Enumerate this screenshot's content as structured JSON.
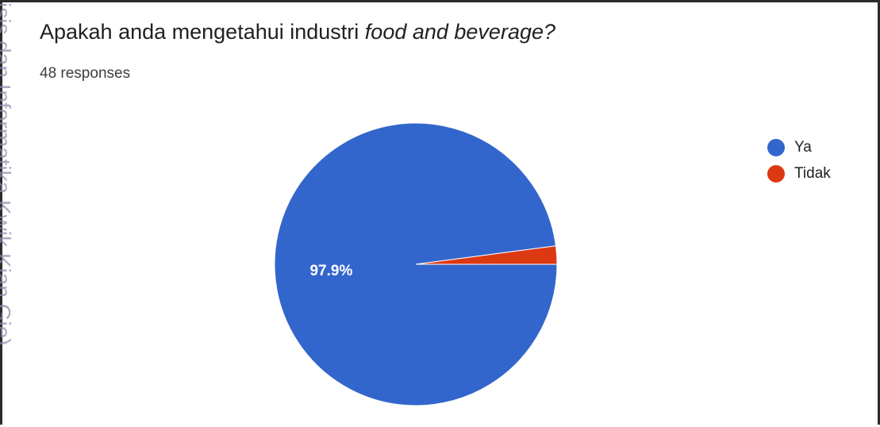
{
  "watermark": "isis dan Informatika Kwik Kian Gie)",
  "title_prefix": "Apakah anda mengetahui industri ",
  "title_italic": "food and beverage?",
  "responses": "48 responses",
  "chart_data": {
    "type": "pie",
    "categories": [
      "Ya",
      "Tidak"
    ],
    "values": [
      47,
      1
    ],
    "percent_labels": [
      "97.9%",
      ""
    ],
    "colors": [
      "#3366cc",
      "#dc3912"
    ],
    "legend_position": "top-right"
  }
}
